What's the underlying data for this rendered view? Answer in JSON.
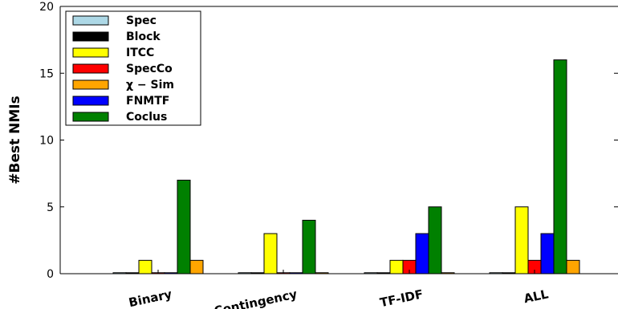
{
  "chart_data": {
    "type": "bar",
    "ylabel": "#Best NMIs",
    "xlabel": "",
    "ylim": [
      0,
      20
    ],
    "yticks": [
      0,
      5,
      10,
      15,
      20
    ],
    "categories": [
      "Binary",
      "Contingency",
      "TF-IDF",
      "ALL"
    ],
    "legend_position": "top-left",
    "grid": false,
    "series": [
      {
        "name": "Spec",
        "color": "#add8e6",
        "values": [
          0,
          0,
          0,
          0
        ]
      },
      {
        "name": "Block",
        "color": "#000000",
        "values": [
          0,
          0,
          0,
          0
        ]
      },
      {
        "name": "ITCC",
        "color": "#ffff00",
        "values": [
          1,
          3,
          1,
          5
        ]
      },
      {
        "name": "SpecCo",
        "color": "#ff0000",
        "values": [
          0,
          0,
          1,
          1
        ]
      },
      {
        "name": "χ − Sim",
        "color": "#ffa500",
        "values": [
          1,
          0,
          0,
          1
        ]
      },
      {
        "name": "FNMTF",
        "color": "#0000ff",
        "values": [
          0,
          0,
          3,
          3
        ]
      },
      {
        "name": "Coclus",
        "color": "#008000",
        "values": [
          7,
          4,
          5,
          16
        ]
      }
    ],
    "draw_order": [
      "Spec",
      "Block",
      "ITCC",
      "SpecCo",
      "FNMTF",
      "Coclus",
      "χ − Sim"
    ]
  }
}
